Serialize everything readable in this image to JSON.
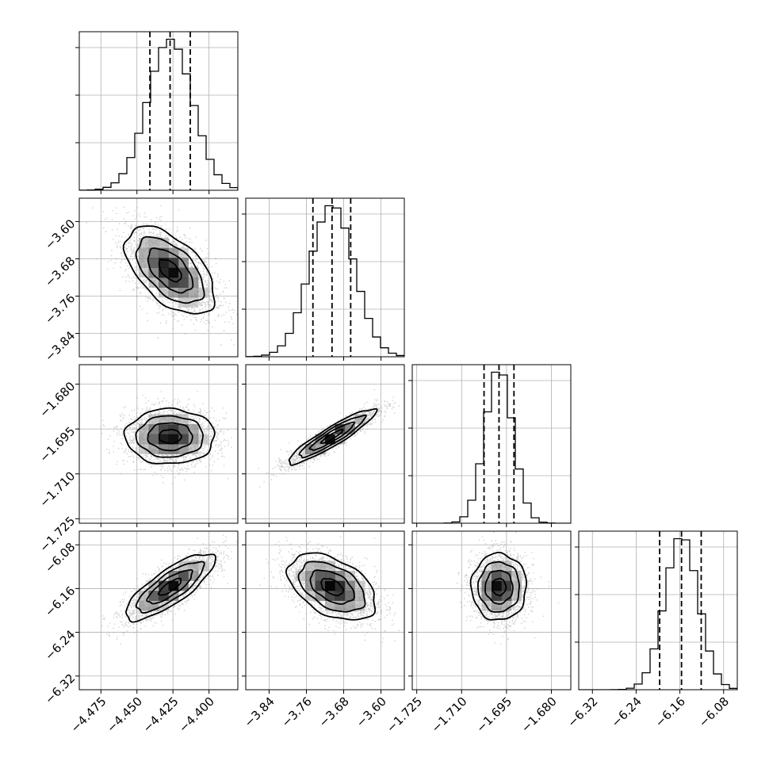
{
  "chart_data": {
    "type": "corner",
    "grid": true,
    "parameters": [
      {
        "range": [
          -4.49,
          -4.38
        ],
        "mean": -4.427,
        "std": 0.0155,
        "quantiles": [
          -4.441,
          -4.427,
          -4.413
        ],
        "ticks": [
          -4.475,
          -4.45,
          -4.425,
          -4.4
        ],
        "tick_labels": [
          "−4.475",
          "−4.450",
          "−4.425",
          "−4.400"
        ]
      },
      {
        "range": [
          -3.89,
          -3.55
        ],
        "mean": -3.705,
        "std": 0.047,
        "quantiles": [
          -3.746,
          -3.705,
          -3.665
        ],
        "ticks": [
          -3.84,
          -3.76,
          -3.68,
          -3.6
        ],
        "tick_labels": [
          "−3.84",
          "−3.76",
          "−3.68",
          "−3.60"
        ]
      },
      {
        "range": [
          -1.7265,
          -1.6735
        ],
        "mean": -1.6975,
        "std": 0.0046,
        "quantiles": [
          -1.7025,
          -1.6975,
          -1.6925
        ],
        "ticks": [
          -1.725,
          -1.71,
          -1.695,
          -1.68
        ],
        "tick_labels": [
          "−1.725",
          "−1.710",
          "−1.695",
          "−1.680"
        ]
      },
      {
        "range": [
          -6.345,
          -6.055
        ],
        "mean": -6.157,
        "std": 0.0305,
        "quantiles": [
          -6.197,
          -6.157,
          -6.121
        ],
        "ticks": [
          -6.32,
          -6.24,
          -6.16,
          -6.08
        ],
        "tick_labels": [
          "−6.32",
          "−6.24",
          "−6.16",
          "−6.08"
        ]
      }
    ],
    "correlations": [
      [
        1.0,
        -0.55,
        0.0,
        0.8
      ],
      [
        -0.55,
        1.0,
        0.92,
        -0.45
      ],
      [
        0.0,
        0.92,
        1.0,
        0.0
      ],
      [
        0.8,
        -0.45,
        0.0,
        1.0
      ]
    ],
    "histogram_bins": 20,
    "contour_levels_sigma": [
      0.5,
      1.0,
      1.5,
      2.0
    ]
  }
}
